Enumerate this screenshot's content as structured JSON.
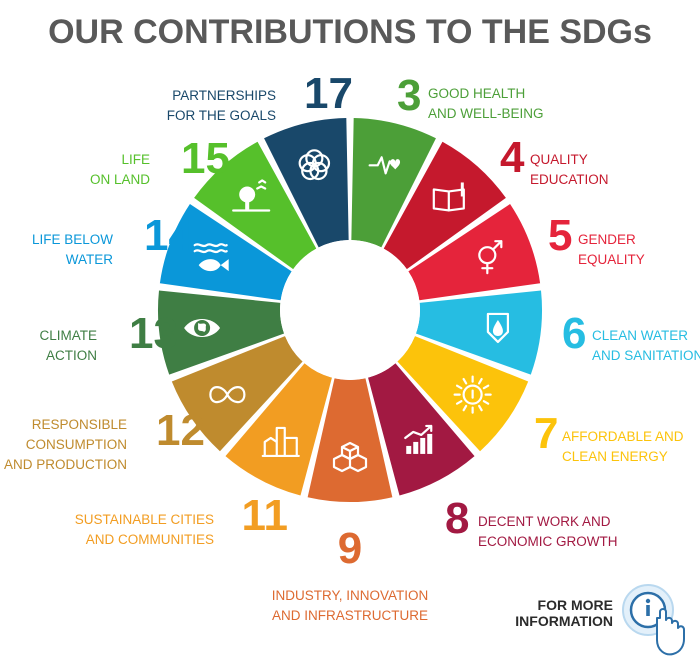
{
  "title": "OUR CONTRIBUTIONS TO THE SDGs",
  "more_info": {
    "line1": "FOR MORE",
    "line2": "INFORMATION"
  },
  "goals": [
    {
      "number": "3",
      "label": [
        "GOOD HEALTH",
        "AND WELL-BEING"
      ],
      "color": "#4C9F38",
      "icon": "heartbeat-icon"
    },
    {
      "number": "4",
      "label": [
        "QUALITY",
        "EDUCATION"
      ],
      "color": "#C5192D",
      "icon": "book-icon"
    },
    {
      "number": "5",
      "label": [
        "GENDER",
        "EQUALITY"
      ],
      "color": "#E5243B",
      "icon": "gender-icon"
    },
    {
      "number": "6",
      "label": [
        "CLEAN WATER",
        "AND SANITATION"
      ],
      "color": "#26BDE2",
      "icon": "water-drop-icon"
    },
    {
      "number": "7",
      "label": [
        "AFFORDABLE AND",
        "CLEAN ENERGY"
      ],
      "color": "#FCC30B",
      "icon": "power-sun-icon"
    },
    {
      "number": "8",
      "label": [
        "DECENT WORK AND",
        "ECONOMIC GROWTH"
      ],
      "color": "#A21942",
      "icon": "growth-chart-icon"
    },
    {
      "number": "9",
      "label": [
        "INDUSTRY, INNOVATION",
        "AND INFRASTRUCTURE"
      ],
      "color": "#DD6A31",
      "icon": "cubes-icon"
    },
    {
      "number": "11",
      "label": [
        "SUSTAINABLE CITIES",
        "AND COMMUNITIES"
      ],
      "color": "#F29D22",
      "icon": "city-icon"
    },
    {
      "number": "12",
      "label": [
        "RESPONSIBLE",
        "CONSUMPTION",
        "AND PRODUCTION"
      ],
      "color": "#BF8B2E",
      "icon": "infinity-icon"
    },
    {
      "number": "13",
      "label": [
        "CLIMATE",
        "ACTION"
      ],
      "color": "#3F7E44",
      "icon": "eye-globe-icon"
    },
    {
      "number": "14",
      "label": [
        "LIFE BELOW",
        "WATER"
      ],
      "color": "#0A97D9",
      "icon": "fish-icon"
    },
    {
      "number": "15",
      "label": [
        "LIFE",
        "ON LAND"
      ],
      "color": "#56C02B",
      "icon": "tree-icon"
    },
    {
      "number": "17",
      "label": [
        "PARTNERSHIPS",
        "FOR THE GOALS"
      ],
      "color": "#19486A",
      "icon": "rings-icon"
    }
  ]
}
